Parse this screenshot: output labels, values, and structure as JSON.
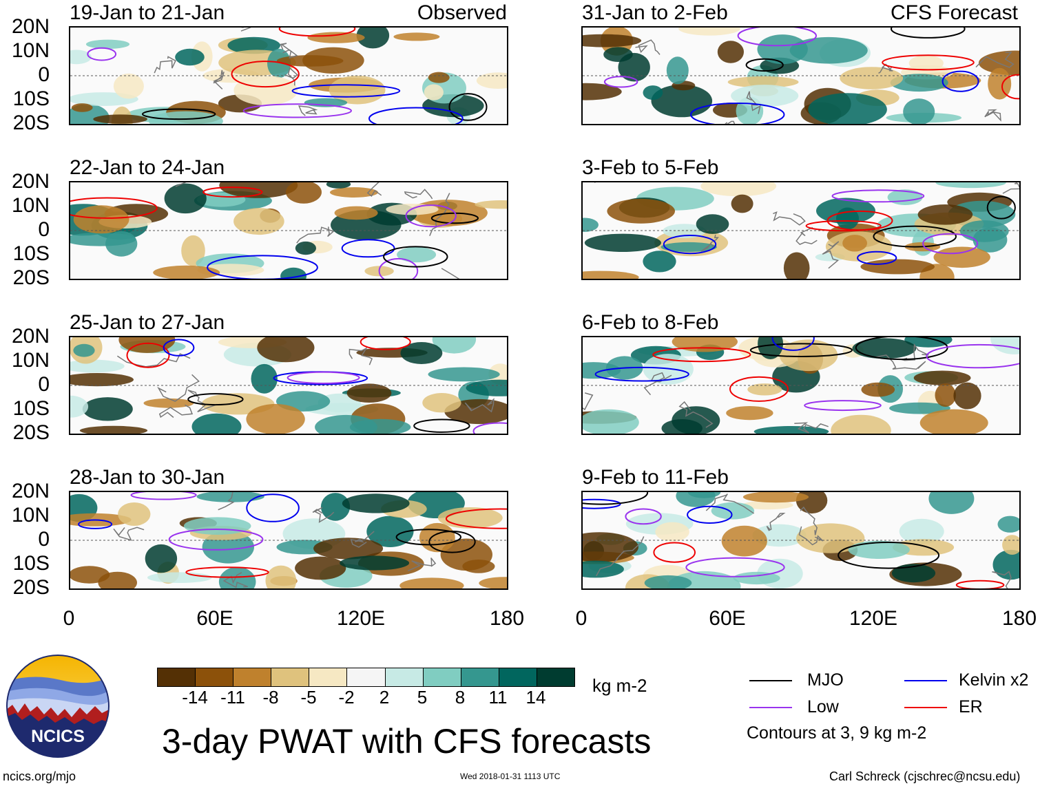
{
  "headers": {
    "left": "Observed",
    "right": "CFS Forecast"
  },
  "lat_labels": [
    "20N",
    "10N",
    "0",
    "10S",
    "20S"
  ],
  "lon_labels": [
    "0",
    "60E",
    "120E",
    "180"
  ],
  "panels_left": [
    {
      "title": "19-Jan to 21-Jan"
    },
    {
      "title": "22-Jan to 24-Jan"
    },
    {
      "title": "25-Jan to 27-Jan"
    },
    {
      "title": "28-Jan to 30-Jan"
    }
  ],
  "panels_right": [
    {
      "title": "31-Jan to 2-Feb"
    },
    {
      "title": "3-Feb to 5-Feb"
    },
    {
      "title": "6-Feb to 8-Feb"
    },
    {
      "title": "9-Feb to 11-Feb"
    }
  ],
  "colorbar": {
    "labels": [
      "-14",
      "-11",
      "-8",
      "-5",
      "-2",
      "2",
      "5",
      "8",
      "11",
      "14"
    ],
    "units": "kg m-2",
    "colors": [
      "#543005",
      "#8c510a",
      "#bf812d",
      "#dfc27d",
      "#f6e8c3",
      "#f5f5f5",
      "#c7eae5",
      "#80cdc1",
      "#35978f",
      "#01665e",
      "#003c30"
    ]
  },
  "legend": {
    "items": [
      {
        "label": "MJO",
        "color": "#000000"
      },
      {
        "label": "Kelvin x2",
        "color": "#0000ee"
      },
      {
        "label": "Low",
        "color": "#9933ee"
      },
      {
        "label": "ER",
        "color": "#ee0000"
      }
    ],
    "note": "Contours at 3, 9 kg m-2"
  },
  "title": "3-day PWAT with CFS forecasts",
  "logo_text": "NCICS",
  "footer": {
    "url": "ncics.org/mjo",
    "timestamp": "Wed 2018-01-31 1113 UTC",
    "credit": "Carl Schreck (cjschrec@ncsu.edu)"
  }
}
